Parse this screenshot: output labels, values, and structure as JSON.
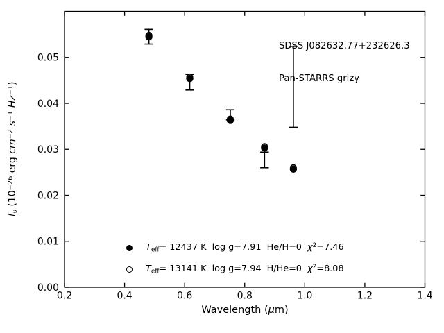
{
  "figure": {
    "background": "#ffffff",
    "ink_color": "#000000",
    "annotation": {
      "line1": "SDSS J082632.77+232626.3",
      "line2": "Pan-STARRS grizy"
    },
    "xlabel_parts": {
      "pre": "Wavelength (",
      "mu": "μ",
      "post": "m)"
    },
    "ylabel_parts": {
      "f": "f",
      "nu": "ν",
      "open": " (10",
      "exp": "−26",
      "erg": " erg ",
      "cm": "cm",
      "cm_exp": "−2",
      "sp1": " ",
      "s": "s",
      "s_exp": "−1",
      "sp2": " ",
      "hz": "Hz",
      "hz_exp": "−1",
      "close": ")"
    }
  },
  "legend": {
    "entries": [
      {
        "marker": "filled-circle",
        "t": "T",
        "t_sub": "eff",
        "seg1": "= 12437 K  log g=7.91  He/H=0  ",
        "chi": "χ",
        "chi_sup": "2",
        "seg2": "=7.46"
      },
      {
        "marker": "open-circle",
        "t": "T",
        "t_sub": "eff",
        "seg1": "= 13141 K  log g=7.94  H/He=0  ",
        "chi": "χ",
        "chi_sup": "2",
        "seg2": "=8.08"
      }
    ]
  },
  "chart_data": {
    "type": "scatter",
    "title": "",
    "xlabel": "Wavelength (μm)",
    "ylabel": "f_ν (10^−26 erg cm^−2 s^−1 Hz^−1)",
    "annotation": [
      "SDSS J082632.77+232626.3",
      "Pan-STARRS grizy"
    ],
    "xlim": [
      0.2,
      1.4
    ],
    "ylim": [
      0.0,
      0.06
    ],
    "grid": false,
    "tick_direction": "in",
    "xticks": {
      "values": [
        0.2,
        0.4,
        0.6,
        0.8,
        1.0,
        1.2,
        1.4
      ],
      "labels": [
        "0.2",
        "0.4",
        "0.6",
        "0.8",
        "1.0",
        "1.2",
        "1.4"
      ]
    },
    "yticks": {
      "values": [
        0.0,
        0.01,
        0.02,
        0.03,
        0.04,
        0.05
      ],
      "labels": [
        "0.00",
        "0.01",
        "0.02",
        "0.03",
        "0.04",
        "0.05"
      ]
    },
    "bands": [
      "g",
      "r",
      "i",
      "z",
      "y"
    ],
    "observed_errorbars": {
      "x": [
        0.481,
        0.617,
        0.752,
        0.866,
        0.962
      ],
      "flux": [
        0.0545,
        0.0446,
        0.0375,
        0.0277,
        0.0436
      ],
      "err": [
        0.0016,
        0.0017,
        0.0011,
        0.0017,
        0.0088
      ]
    },
    "series": [
      {
        "name": "model-teff-12437",
        "marker": "filled-circle",
        "legend_label": "Teff= 12437 K  log g=7.91  He/H=0  χ2=7.46",
        "x": [
          0.481,
          0.617,
          0.752,
          0.866,
          0.962
        ],
        "y": [
          0.0545,
          0.0454,
          0.0363,
          0.0303,
          0.0257
        ]
      },
      {
        "name": "model-teff-13141",
        "marker": "open-circle",
        "legend_label": "Teff= 13141 K  log g=7.94  H/He=0  χ2=8.08",
        "x": [
          0.481,
          0.617,
          0.752,
          0.866,
          0.962
        ],
        "y": [
          0.0548,
          0.0457,
          0.0366,
          0.0306,
          0.026
        ]
      }
    ],
    "legend_position": "lower-center"
  }
}
